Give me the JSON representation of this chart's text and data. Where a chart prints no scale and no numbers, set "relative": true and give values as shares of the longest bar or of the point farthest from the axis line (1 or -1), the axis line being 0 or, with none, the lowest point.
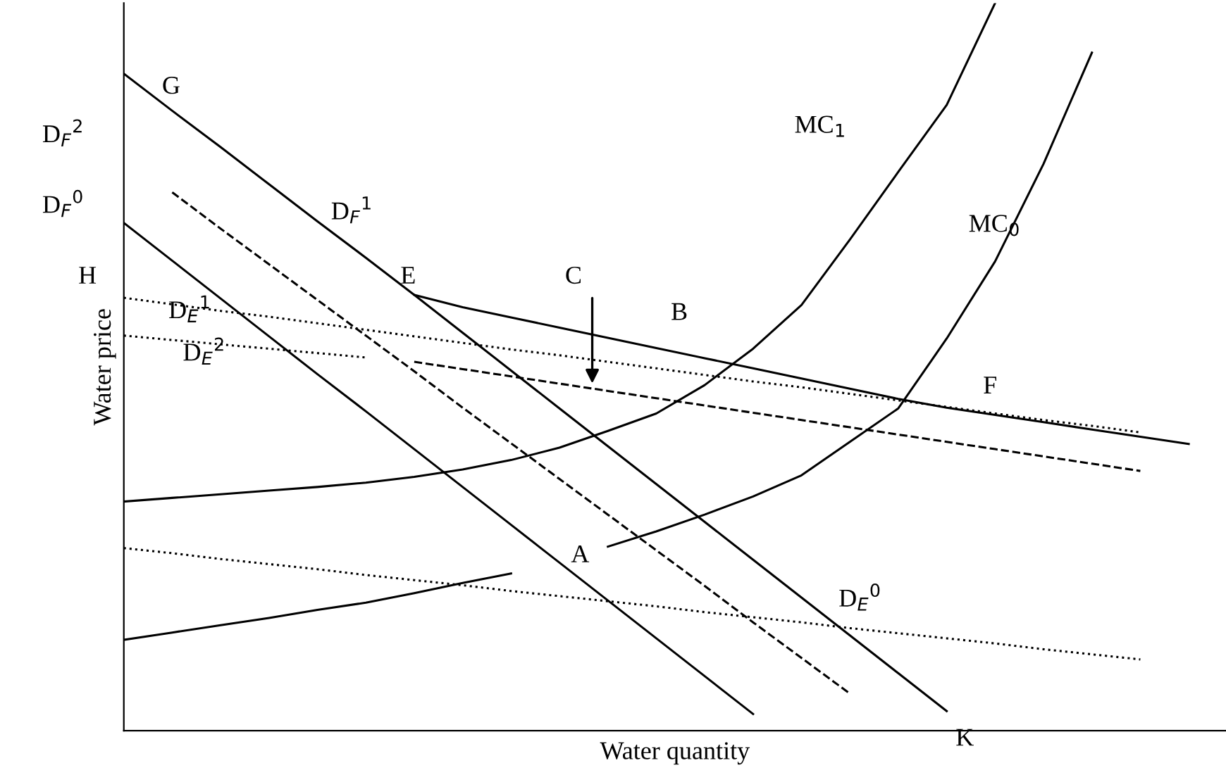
{
  "chart_data": {
    "type": "line",
    "relative": true,
    "xlabel": "Water quantity",
    "ylabel": "Water price",
    "categories": [
      null,
      null,
      null,
      null,
      null,
      null,
      null,
      null,
      null,
      null,
      null,
      null,
      null,
      null,
      null,
      null,
      null,
      null,
      null,
      null,
      null,
      null,
      null
    ],
    "series": [
      {
        "color": "#000000",
        "line_style": "solid",
        "values": [
          0.903,
          0.852,
          0.802,
          0.751,
          0.7,
          0.65,
          0.599,
          0.582,
          0.568,
          0.554,
          0.54,
          0.526,
          0.512,
          0.498,
          0.484,
          0.47,
          0.456,
          0.444,
          0.434,
          0.424,
          0.414,
          0.404,
          0.394
        ]
      },
      {
        "color": "#000000",
        "line_style": "solid",
        "values": [
          null,
          null,
          null,
          null,
          null,
          null,
          0.599,
          0.547,
          0.495,
          0.443,
          0.391,
          0.339,
          0.287,
          0.235,
          0.183,
          0.131,
          0.079,
          0.027,
          null,
          null,
          null,
          null,
          null
        ]
      },
      {
        "color": "#000000",
        "line_style": "solid",
        "values": [
          0.698,
          0.646,
          0.594,
          0.542,
          0.49,
          0.439,
          0.387,
          0.335,
          0.283,
          0.231,
          0.179,
          0.127,
          0.075,
          0.023,
          null,
          null,
          null,
          null,
          null,
          null,
          null,
          null,
          null
        ]
      },
      {
        "color": "#000000",
        "line_style": "dashed",
        "values": [
          null,
          0.74,
          0.69,
          0.641,
          0.592,
          0.543,
          0.494,
          0.444,
          0.395,
          0.346,
          0.297,
          0.248,
          0.199,
          0.149,
          0.1,
          0.051,
          null,
          null,
          null,
          null,
          null,
          null,
          null
        ]
      },
      {
        "color": "#000000",
        "line_style": "dashed",
        "values": [
          null,
          null,
          null,
          null,
          null,
          null,
          0.507,
          0.497,
          0.487,
          0.477,
          0.467,
          0.457,
          0.447,
          0.437,
          0.427,
          0.417,
          0.407,
          0.397,
          0.387,
          0.377,
          0.367,
          0.357,
          null
        ]
      },
      {
        "color": "#000000",
        "line_style": "dotted",
        "values": [
          0.595,
          0.586,
          0.577,
          0.569,
          0.56,
          0.551,
          0.542,
          0.533,
          0.524,
          0.516,
          0.507,
          0.498,
          0.489,
          0.48,
          0.472,
          0.463,
          0.454,
          0.445,
          0.436,
          0.427,
          0.419,
          0.41,
          null
        ]
      },
      {
        "color": "#000000",
        "line_style": "dotted",
        "values": [
          0.543,
          0.537,
          0.531,
          0.525,
          0.519,
          0.513,
          null,
          null,
          null,
          null,
          null,
          null,
          null,
          null,
          null,
          null,
          null,
          null,
          null,
          null,
          null,
          null,
          null
        ]
      },
      {
        "color": "#000000",
        "line_style": "dotted",
        "values": [
          0.251,
          0.244,
          0.236,
          0.229,
          0.222,
          0.214,
          0.207,
          0.2,
          0.192,
          0.185,
          0.178,
          0.171,
          0.163,
          0.156,
          0.149,
          0.141,
          0.134,
          0.127,
          0.12,
          0.112,
          0.105,
          0.098,
          null
        ]
      },
      {
        "color": "#000000",
        "line_style": "solid",
        "values": [
          0.315,
          0.32,
          0.325,
          0.33,
          0.335,
          0.341,
          0.349,
          0.359,
          0.372,
          0.389,
          0.412,
          0.436,
          0.475,
          0.525,
          0.585,
          0.675,
          0.768,
          0.86,
          1.0,
          null,
          null,
          null,
          null
        ]
      },
      {
        "color": "#000000",
        "line_style": "solid",
        "values": [
          0.125,
          0.135,
          0.145,
          0.155,
          0.166,
          0.176,
          0.189,
          0.203,
          0.216,
          null,
          null,
          null,
          null,
          null,
          null,
          null,
          null,
          null,
          null,
          null,
          null,
          null,
          null
        ]
      },
      {
        "color": "#000000",
        "line_style": "solid",
        "values": [
          null,
          null,
          null,
          null,
          null,
          null,
          null,
          null,
          null,
          null,
          0.253,
          0.274,
          0.297,
          0.322,
          0.351,
          0.397,
          0.443,
          0.539,
          0.645,
          0.779,
          0.932,
          null,
          null
        ]
      }
    ],
    "annotations": [
      "G",
      "D$_{F}$$^{2}$",
      "D$_{F}$$^{0}$",
      "H",
      "D$_{F}$$^{1}$",
      "E",
      "C",
      "B",
      "D$_{E}$$^{1}$",
      "D$_{E}$$^{2}$",
      "MC$_{1}$",
      "MC$_{0}$",
      "F",
      "A",
      "D$_{E}$$^{0}$",
      "K"
    ]
  }
}
